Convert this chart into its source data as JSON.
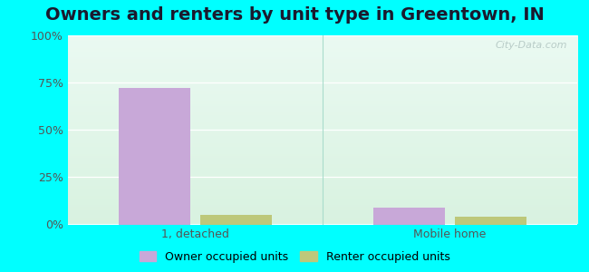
{
  "title": "Owners and renters by unit type in Greentown, IN",
  "categories": [
    "1, detached",
    "Mobile home"
  ],
  "owner_values": [
    72,
    9
  ],
  "renter_values": [
    5,
    4
  ],
  "owner_color": "#c8a8d8",
  "renter_color": "#bdc87a",
  "bar_width": 0.28,
  "ylim": [
    0,
    100
  ],
  "yticks": [
    0,
    25,
    50,
    75,
    100
  ],
  "ytick_labels": [
    "0%",
    "25%",
    "50%",
    "75%",
    "100%"
  ],
  "bg_color_topleft": "#d0ede8",
  "bg_color_topright": "#f0f8f0",
  "bg_color_bottomleft": "#d8f0e0",
  "bg_color_bottomright": "#f8fff0",
  "outer_background": "#00ffff",
  "watermark": "City-Data.com",
  "legend_owner": "Owner occupied units",
  "legend_renter": "Renter occupied units",
  "title_fontsize": 14,
  "tick_fontsize": 9,
  "legend_fontsize": 9,
  "grid_color": "#ffffff",
  "separator_color": "#aaddcc"
}
